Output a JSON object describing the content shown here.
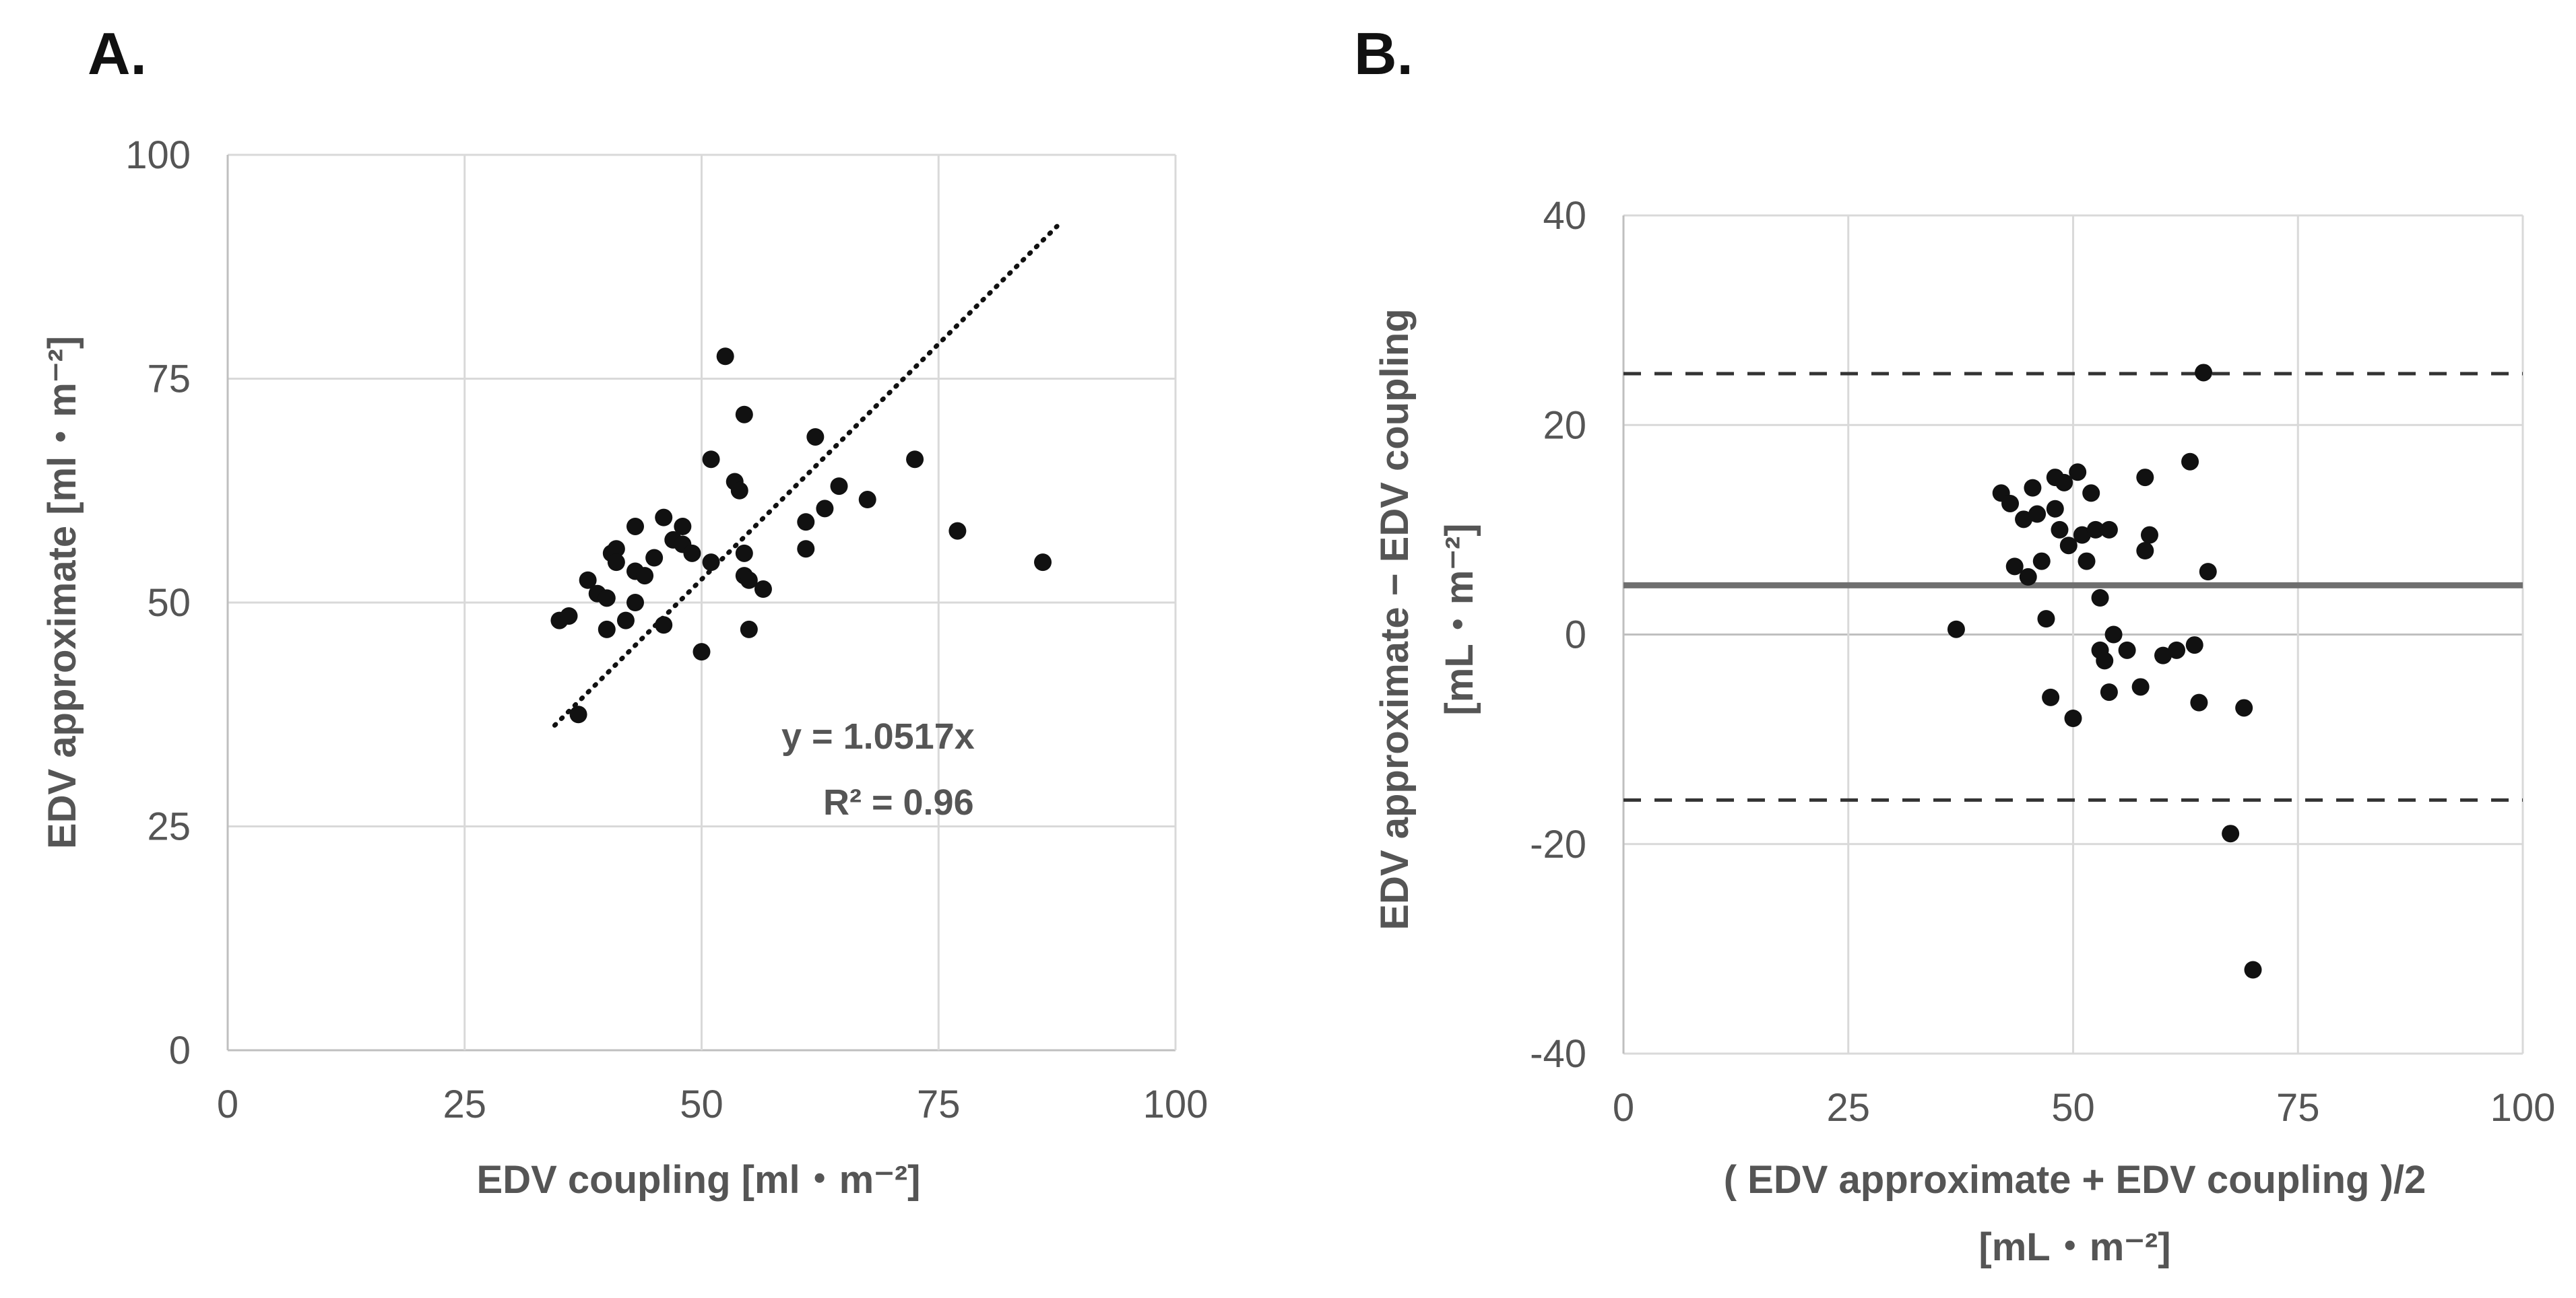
{
  "chart_data": [
    {
      "type": "scatter",
      "panel_label": "A.",
      "title": "",
      "xlabel": "EDV coupling [ml・m⁻²]",
      "ylabel": "EDV approximate [ml・m⁻²]",
      "xlim": [
        0,
        100
      ],
      "ylim": [
        0,
        100
      ],
      "xticks": [
        0,
        25,
        50,
        75,
        100
      ],
      "yticks": [
        0,
        25,
        50,
        75,
        100
      ],
      "grid": true,
      "points": [
        [
          35,
          48
        ],
        [
          36,
          48.5
        ],
        [
          37,
          37.5
        ],
        [
          38,
          52.5
        ],
        [
          39,
          51
        ],
        [
          40,
          50.5
        ],
        [
          40,
          47
        ],
        [
          40.5,
          55.5
        ],
        [
          41,
          56
        ],
        [
          41,
          54.5
        ],
        [
          42,
          48
        ],
        [
          43,
          53.5
        ],
        [
          43,
          58.5
        ],
        [
          43,
          50
        ],
        [
          44,
          53
        ],
        [
          45,
          55
        ],
        [
          46,
          59.5
        ],
        [
          46,
          47.5
        ],
        [
          47,
          57
        ],
        [
          48,
          58.5
        ],
        [
          48,
          56.5
        ],
        [
          49,
          55.5
        ],
        [
          50,
          44.5
        ],
        [
          51,
          66
        ],
        [
          51,
          54.5
        ],
        [
          52.5,
          77.5
        ],
        [
          53.5,
          63.5
        ],
        [
          54,
          62.5
        ],
        [
          54.5,
          71
        ],
        [
          54.5,
          55.5
        ],
        [
          54.5,
          53
        ],
        [
          55,
          52.5
        ],
        [
          55,
          47
        ],
        [
          56.5,
          51.5
        ],
        [
          61,
          59
        ],
        [
          61,
          56
        ],
        [
          62,
          68.5
        ],
        [
          63,
          60.5
        ],
        [
          64.5,
          63
        ],
        [
          67.5,
          61.5
        ],
        [
          72.5,
          66
        ],
        [
          77,
          58
        ],
        [
          86,
          54.5
        ]
      ],
      "trendline": {
        "label": "y = 1.0517x",
        "r2_label": "R² = 0.96",
        "slope": 1.0517,
        "x_range": [
          34.5,
          87.5
        ],
        "style": "dotted"
      }
    },
    {
      "type": "scatter",
      "panel_label": "B.",
      "title": "",
      "xlabel": "( EDV approximate + EDV coupling )/2",
      "xlabel_units": "[mL・m⁻²]",
      "ylabel": "EDV approximate − EDV  coupling",
      "ylabel_units": "[mL・m⁻²]",
      "xlim": [
        0,
        100
      ],
      "ylim": [
        -40,
        40
      ],
      "xticks": [
        0,
        25,
        50,
        75,
        100
      ],
      "yticks": [
        -40,
        -20,
        0,
        20,
        40
      ],
      "grid": true,
      "mean_line": 4.7,
      "upper_loa": 24.9,
      "lower_loa": -15.8,
      "points": [
        [
          37,
          0.5
        ],
        [
          42,
          13.5
        ],
        [
          43,
          12.5
        ],
        [
          43.5,
          6.5
        ],
        [
          44.5,
          11
        ],
        [
          45,
          5.5
        ],
        [
          45.5,
          14
        ],
        [
          46,
          11.5
        ],
        [
          46.5,
          7
        ],
        [
          47,
          1.5
        ],
        [
          47.5,
          -6
        ],
        [
          48,
          15
        ],
        [
          48,
          12
        ],
        [
          48.5,
          10
        ],
        [
          49,
          14.5
        ],
        [
          49.5,
          8.5
        ],
        [
          50,
          -8
        ],
        [
          50.5,
          15.5
        ],
        [
          51,
          9.5
        ],
        [
          51.5,
          7
        ],
        [
          52,
          13.5
        ],
        [
          52.5,
          10
        ],
        [
          53,
          3.5
        ],
        [
          53,
          -1.5
        ],
        [
          53.5,
          -2.5
        ],
        [
          54,
          10
        ],
        [
          54,
          -5.5
        ],
        [
          54.5,
          0
        ],
        [
          56,
          -1.5
        ],
        [
          57.5,
          -5
        ],
        [
          58,
          15
        ],
        [
          58.5,
          9.5
        ],
        [
          58,
          8
        ],
        [
          60,
          -2
        ],
        [
          61.5,
          -1.5
        ],
        [
          63,
          16.5
        ],
        [
          63.5,
          -1
        ],
        [
          64,
          -6.5
        ],
        [
          64.5,
          25
        ],
        [
          65,
          6
        ],
        [
          67.5,
          -19
        ],
        [
          69,
          -7
        ],
        [
          70,
          -32
        ]
      ]
    }
  ]
}
